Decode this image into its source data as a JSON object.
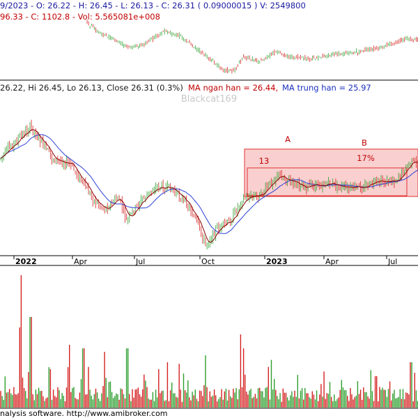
{
  "top_panel": {
    "line1_prefix": "9/2023 - O: 26.22 - H: 26.45 - L: 26.13 - C: 26.31 ( 0.09000015 ) V: 2549800",
    "line2_prefix": "96.33 - C: 1102.8 - Vol: 5.565081e+008"
  },
  "price_panel": {
    "header_ohlc": "26.22, Hi 26.45, Lo 26.13, Close 26.31 (0.3%)",
    "header_ma_short": "MA ngan han = 26.44,",
    "header_ma_mid": "MA trung han = 25.97",
    "watermark": "Blackcat169",
    "annotation_a": "A",
    "annotation_b": "B",
    "annotation_13": "13",
    "annotation_17": "17%"
  },
  "time_axis": {
    "labels": [
      "2022",
      "Apr",
      "Jul",
      "Oct",
      "2023",
      "Apr",
      "Jul"
    ]
  },
  "footer": {
    "text": "nalysis software. http://www.amibroker.com"
  },
  "colors": {
    "up": "#2e9e2e",
    "down": "#d42020",
    "ma_short": "#8b0000",
    "ma_mid": "#2a3fd6",
    "box_fill": "#f4a7a7",
    "box_stroke": "#e03030",
    "header_price": "#1a1a1a",
    "header_ma_short": "#c00000",
    "header_ma_mid": "#1a30c0",
    "watermark": "#c8c8c8",
    "top_line1": "#1a1aa0",
    "top_line2": "#c00000"
  },
  "chart_data": {
    "type": "line",
    "title": "",
    "series": [
      {
        "name": "MA ngan han",
        "last": 26.44
      },
      {
        "name": "MA trung han",
        "last": 25.97
      }
    ],
    "last_bar": {
      "open": 26.22,
      "high": 26.45,
      "low": 26.13,
      "close": 26.31,
      "change_pct": 0.3,
      "volume": 2549800
    },
    "x_tick_labels": [
      "2022",
      "Apr",
      "Jul",
      "Oct",
      "2023",
      "Apr",
      "Jul"
    ],
    "annotations": [
      "A",
      "B",
      "13",
      "17%"
    ],
    "grid": false
  }
}
